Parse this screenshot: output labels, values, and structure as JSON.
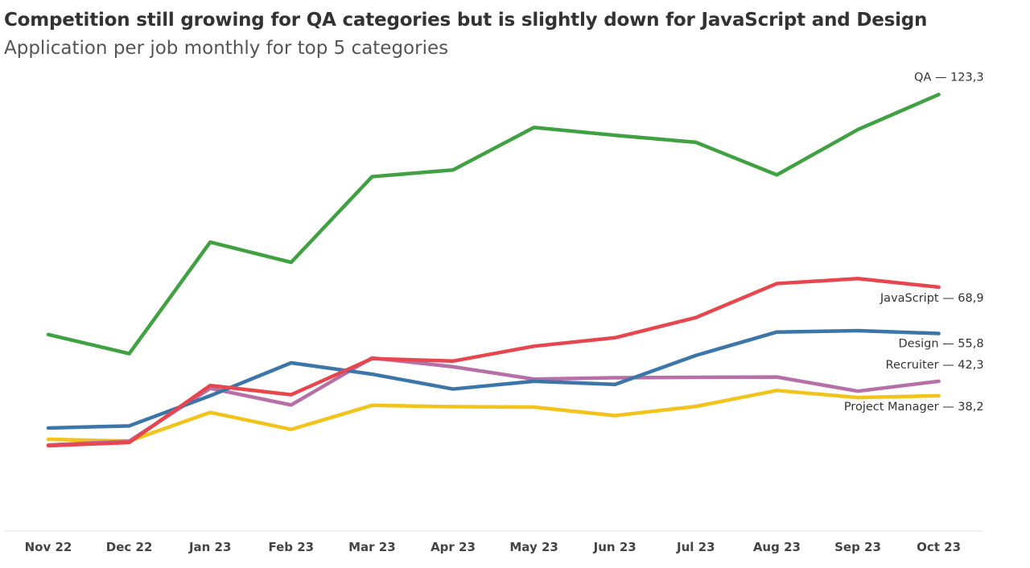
{
  "header": {
    "title": "Competition still growing for QA categories but is slightly down for JavaScript and Design",
    "subtitle": "Application per job monthly for top 5 categories"
  },
  "chart_data": {
    "type": "line",
    "title": "Competition still growing for QA categories but is slightly down for JavaScript and Design",
    "subtitle": "Application per job monthly for top 5 categories",
    "xlabel": "",
    "ylabel": "",
    "categories": [
      "Nov 22",
      "Dec 22",
      "Jan 23",
      "Feb 23",
      "Mar 23",
      "Apr 23",
      "May 23",
      "Jun 23",
      "Jul 23",
      "Aug 23",
      "Sep 23",
      "Oct 23"
    ],
    "ylim": [
      0,
      130
    ],
    "grid": false,
    "legend": "end-of-line labels",
    "series": [
      {
        "name": "QA",
        "color": "#3fa142",
        "end_label": "QA — 123,3",
        "values": [
          55.5,
          50.1,
          81.6,
          75.9,
          100.1,
          102.0,
          114.0,
          111.8,
          109.8,
          100.6,
          113.4,
          123.3
        ]
      },
      {
        "name": "JavaScript",
        "color": "#e8464e",
        "end_label": "JavaScript — 68,9",
        "values": [
          24.1,
          25.0,
          41.1,
          38.5,
          48.7,
          48.0,
          52.2,
          54.6,
          60.3,
          69.9,
          71.3,
          68.9
        ]
      },
      {
        "name": "Design",
        "color": "#3c76a8",
        "end_label": "Design — 55,8",
        "values": [
          29.1,
          29.7,
          38.2,
          47.5,
          44.3,
          40.1,
          42.3,
          41.4,
          49.6,
          56.2,
          56.6,
          55.8
        ]
      },
      {
        "name": "Recruiter",
        "color": "#b76fa8",
        "end_label": "Recruiter — 42,3",
        "values": [
          24.3,
          25.4,
          40.3,
          35.6,
          48.9,
          46.4,
          42.9,
          43.3,
          43.4,
          43.5,
          39.5,
          42.3
        ]
      },
      {
        "name": "Project Manager",
        "color": "#f2c31a",
        "end_label": "Project Manager — 38,2",
        "values": [
          25.9,
          25.4,
          33.5,
          28.7,
          35.5,
          35.1,
          35.0,
          32.6,
          35.2,
          39.7,
          37.7,
          38.2
        ]
      }
    ]
  }
}
